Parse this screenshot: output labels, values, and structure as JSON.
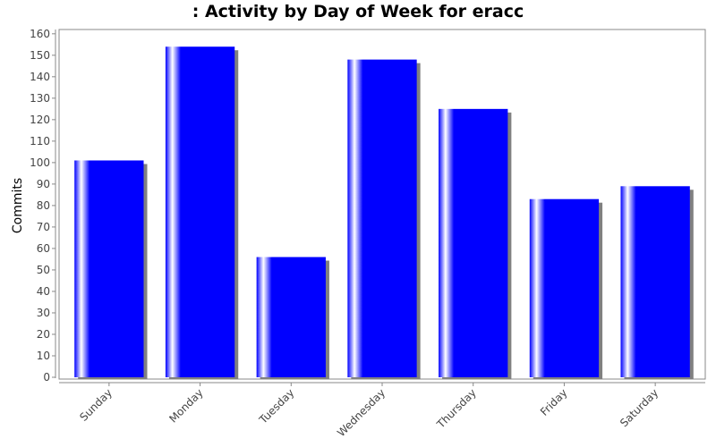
{
  "chart_data": {
    "type": "bar",
    "title": ": Activity by Day of Week for eracc",
    "xlabel": "",
    "ylabel": "Commits",
    "categories": [
      "Sunday",
      "Monday",
      "Tuesday",
      "Wednesday",
      "Thursday",
      "Friday",
      "Saturday"
    ],
    "series": [
      {
        "values": [
          101,
          154,
          56,
          148,
          125,
          83,
          89
        ]
      }
    ],
    "ylim": [
      0,
      162
    ],
    "yticks": [
      0,
      10,
      20,
      30,
      40,
      50,
      60,
      70,
      80,
      90,
      100,
      110,
      120,
      130,
      140,
      150,
      160
    ],
    "grid": false,
    "legend": "none",
    "bar_color": "#0000ff",
    "shadow_color": "#808080"
  }
}
